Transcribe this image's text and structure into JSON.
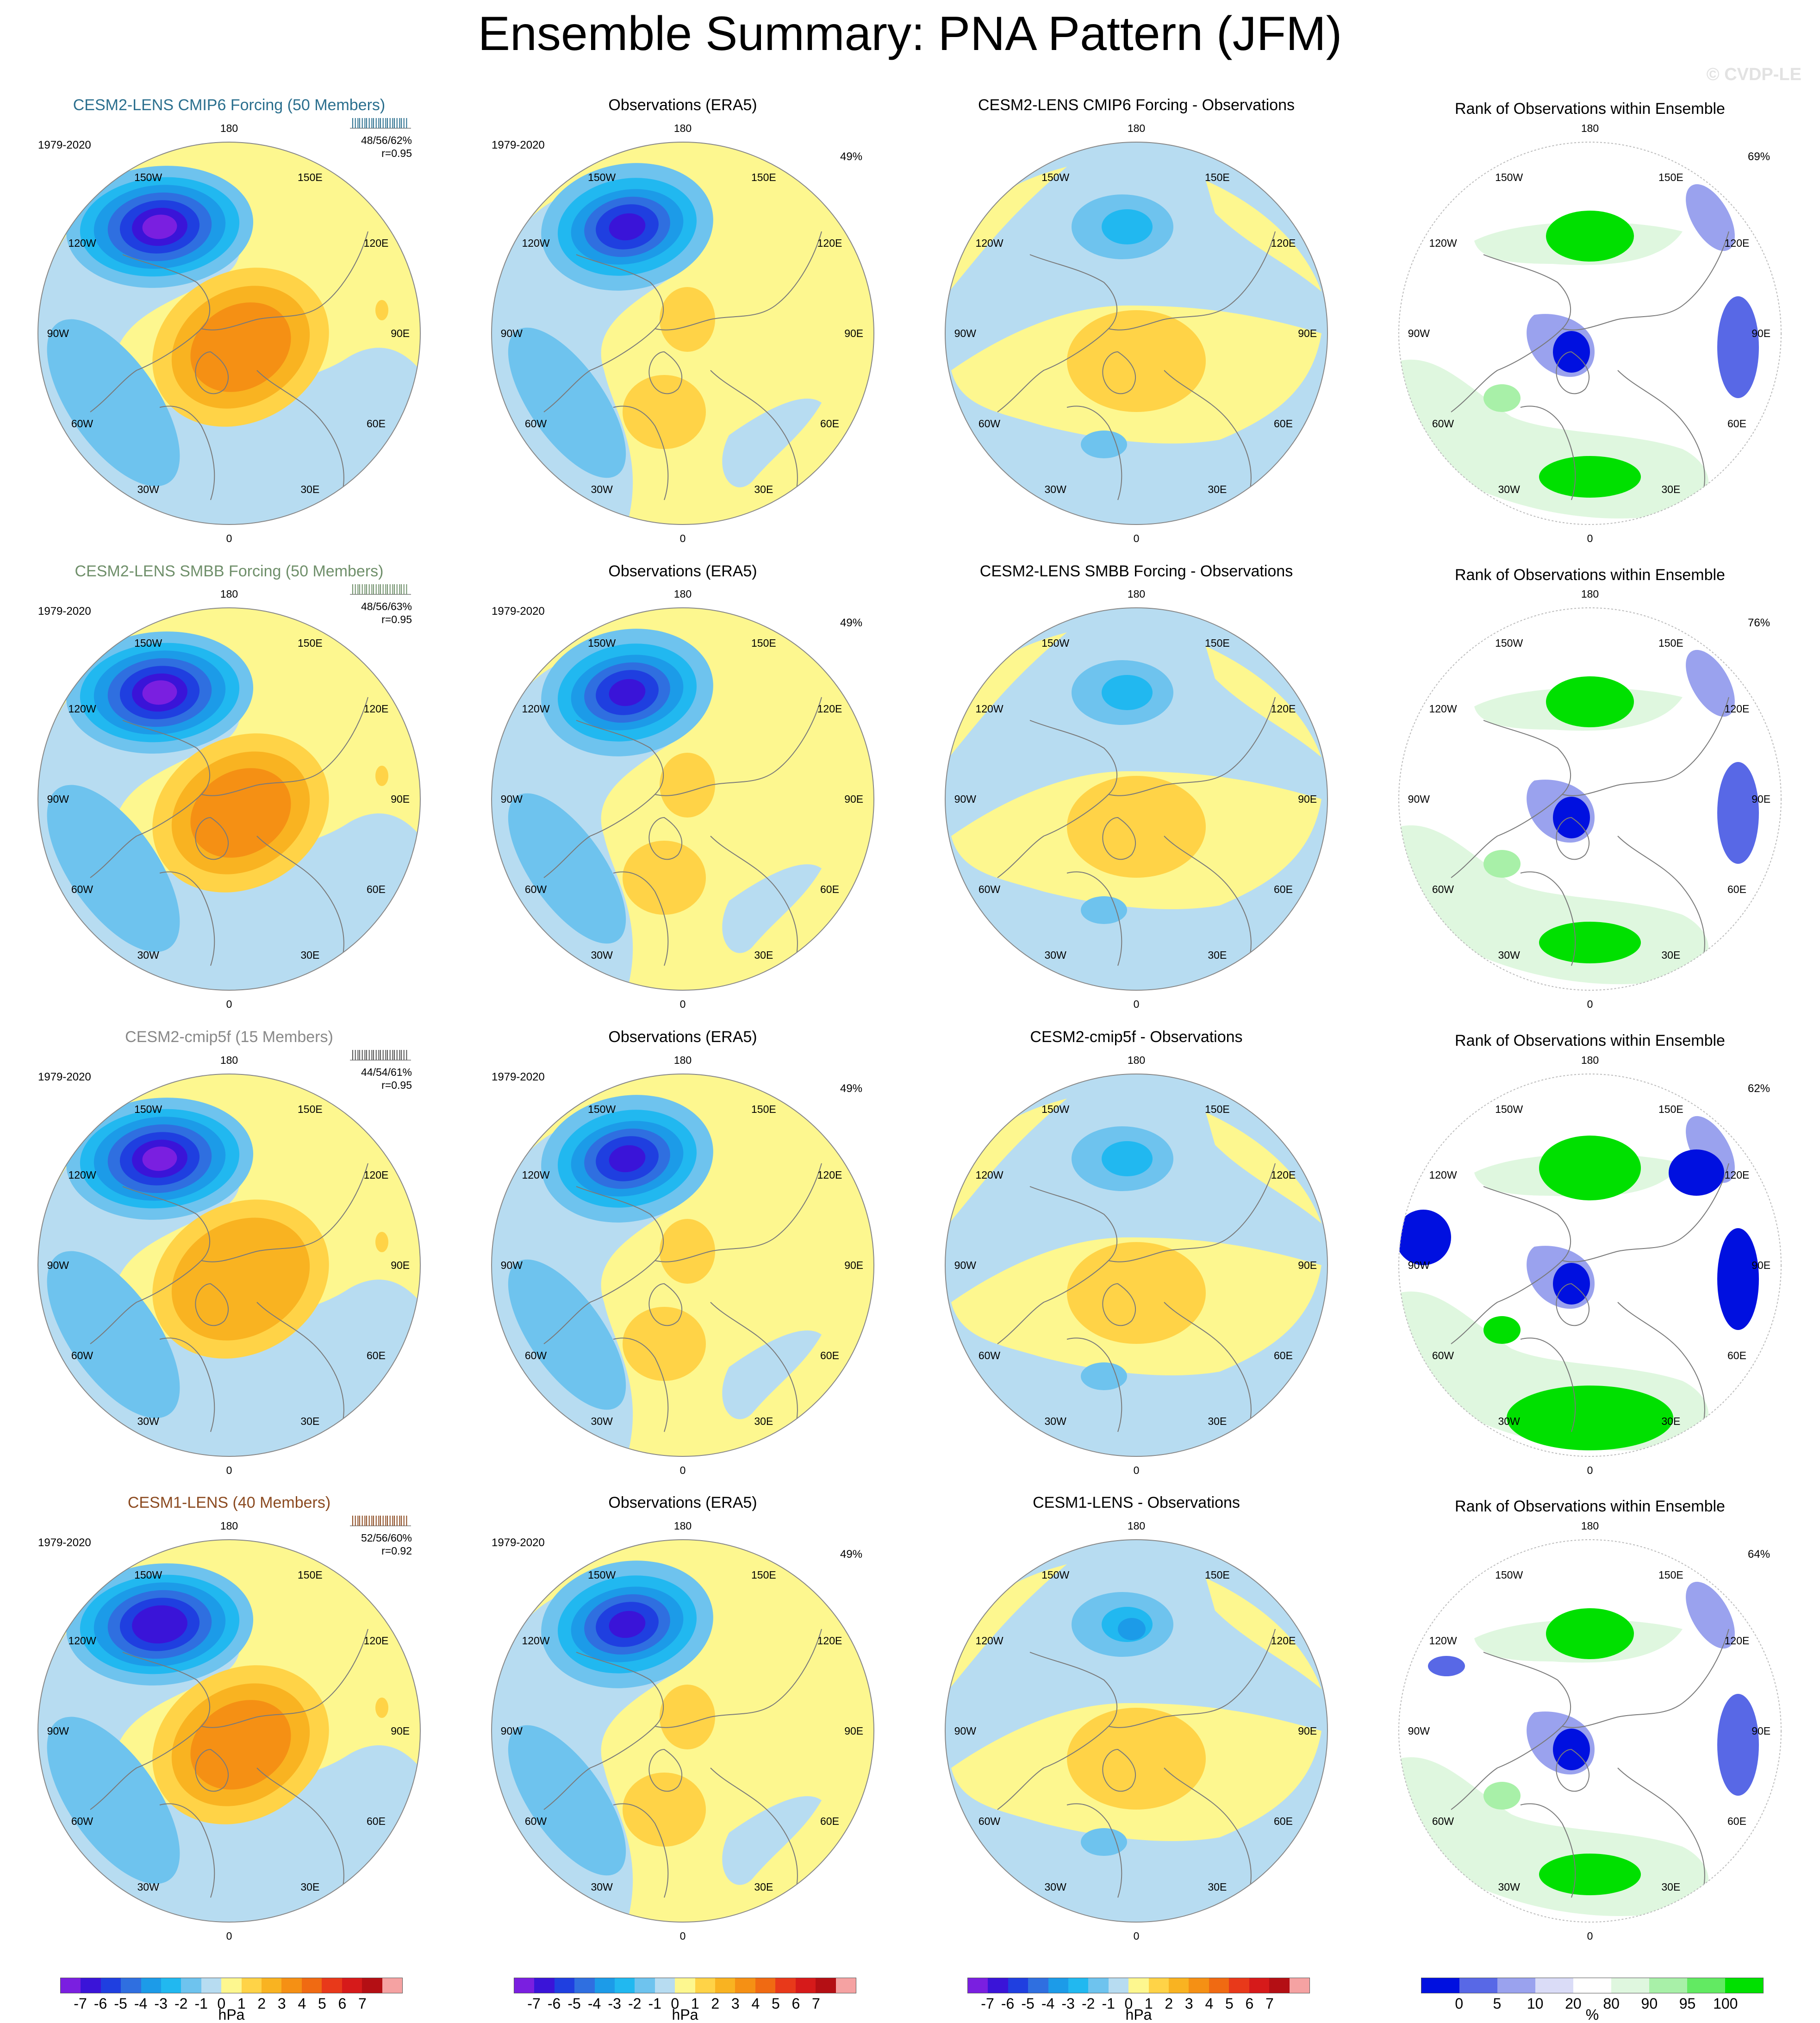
{
  "title": "Ensemble Summary: PNA Pattern (JFM)",
  "watermark": "© CVDP-LE",
  "lon_labels": [
    "180",
    "150E",
    "120E",
    "90E",
    "60E",
    "30E",
    "0",
    "30W",
    "60W",
    "90W",
    "120W",
    "150W"
  ],
  "rows": [
    {
      "model_title": "CESM2-LENS CMIP6 Forcing (50 Members)",
      "obs_title": "Observations (ERA5)",
      "diff_title": "CESM2-LENS CMIP6 Forcing - Observations",
      "rank_title": "Rank of Observations within Ensemble",
      "model_period": "1979-2020",
      "obs_period": "1979-2020",
      "model_stats": [
        "48/56/62%",
        "r=0.95"
      ],
      "obs_pct": "49%",
      "rank_pct": "69%"
    },
    {
      "model_title": "CESM2-LENS SMBB Forcing (50 Members)",
      "obs_title": "Observations (ERA5)",
      "diff_title": "CESM2-LENS SMBB Forcing - Observations",
      "rank_title": "Rank of Observations within Ensemble",
      "model_period": "1979-2020",
      "obs_period": "1979-2020",
      "model_stats": [
        "48/56/63%",
        "r=0.95"
      ],
      "obs_pct": "49%",
      "rank_pct": "76%"
    },
    {
      "model_title": "CESM2-cmip5f (15 Members)",
      "obs_title": "Observations (ERA5)",
      "diff_title": "CESM2-cmip5f - Observations",
      "rank_title": "Rank of Observations within Ensemble",
      "model_period": "1979-2020",
      "obs_period": "1979-2020",
      "model_stats": [
        "44/54/61%",
        "r=0.95"
      ],
      "obs_pct": "49%",
      "rank_pct": "62%"
    },
    {
      "model_title": "CESM1-LENS (40 Members)",
      "obs_title": "Observations (ERA5)",
      "diff_title": "CESM1-LENS - Observations",
      "rank_title": "Rank of Observations within Ensemble",
      "model_period": "1979-2020",
      "obs_period": "1979-2020",
      "model_stats": [
        "52/56/60%",
        "r=0.92"
      ],
      "obs_pct": "49%",
      "rank_pct": "64%"
    }
  ],
  "chart_data": [
    {
      "type": "heatmap",
      "projection": "polar-stereographic-north",
      "variable": "PNA pattern regression (sea level pressure)",
      "units": "hPa",
      "levels": [
        -7,
        -6,
        -5,
        -4,
        -3,
        -2,
        -1,
        0,
        1,
        2,
        3,
        4,
        5,
        6,
        7
      ],
      "colorbar_tick_labels": [
        "-7",
        "-6",
        "-5",
        "-4",
        "-3",
        "-2",
        "-1",
        "0",
        "1",
        "2",
        "3",
        "4",
        "5",
        "6",
        "7"
      ],
      "colorbar_unit_label": "hPa",
      "colors": [
        "#7a1fe0",
        "#3a14d8",
        "#1f3fe0",
        "#2f6fe0",
        "#1c9be8",
        "#21b8f0",
        "#6ec3ee",
        "#b7dcf1",
        "#fdf78f",
        "#ffd347",
        "#f9b321",
        "#f59014",
        "#f06a12",
        "#e8391a",
        "#d61a1a",
        "#b40f14",
        "#f5a2a2"
      ],
      "features": [
        {
          "name": "North Pacific low center",
          "sign": "negative",
          "approx_min_hPa": -7
        },
        {
          "name": "North America / Canada high",
          "sign": "positive",
          "approx_max_hPa": 4
        },
        {
          "name": "Southeastern US / subtropical Atlantic low",
          "sign": "negative",
          "approx_min_hPa": -2
        }
      ]
    },
    {
      "type": "heatmap",
      "projection": "polar-stereographic-north",
      "variable": "Rank of observations within ensemble",
      "units": "%",
      "levels": [
        0,
        5,
        10,
        20,
        80,
        90,
        95,
        100
      ],
      "colorbar_tick_labels": [
        "0",
        "5",
        "10",
        "20",
        "80",
        "90",
        "95",
        "100"
      ],
      "colorbar_unit_label": "%",
      "colors": [
        "#0010e0",
        "#5868e6",
        "#9aa2ee",
        "#dadcf7",
        "#ffffff",
        "#dff7df",
        "#a8f0a8",
        "#62ea62",
        "#00e000"
      ]
    }
  ]
}
